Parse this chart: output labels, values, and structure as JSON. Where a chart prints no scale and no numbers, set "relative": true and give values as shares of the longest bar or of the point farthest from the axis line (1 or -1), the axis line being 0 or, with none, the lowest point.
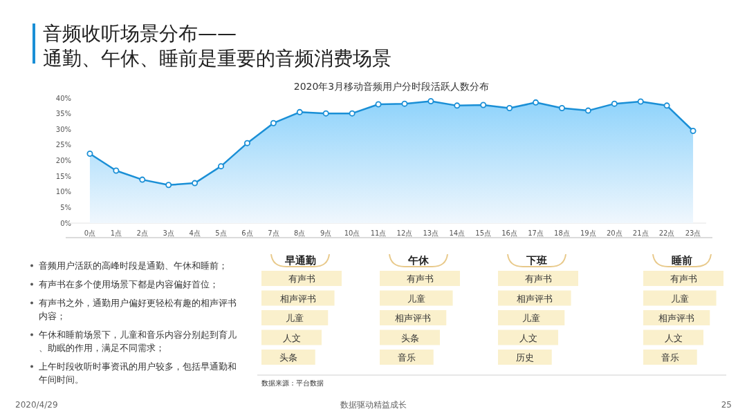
{
  "chart_data": [
    {
      "type": "area",
      "title": "2020年3月移动音频用户分时段活跃人数分布",
      "categories": [
        "0点",
        "1点",
        "2点",
        "3点",
        "4点",
        "5点",
        "6点",
        "7点",
        "8点",
        "9点",
        "10点",
        "11点",
        "12点",
        "13点",
        "14点",
        "15点",
        "16点",
        "17点",
        "18点",
        "19点",
        "20点",
        "21点",
        "22点",
        "23点"
      ],
      "series": [
        {
          "color": "#1a8fd6",
          "values": [
            22.2,
            16.8,
            13.9,
            12.2,
            12.8,
            18.2,
            25.6,
            32.0,
            35.5,
            35.1,
            35.1,
            38.0,
            38.2,
            39.0,
            37.6,
            37.8,
            36.8,
            38.6,
            36.8,
            36.0,
            38.2,
            38.9,
            37.6,
            29.5
          ]
        }
      ],
      "ylim": [
        0,
        40
      ],
      "yticks": [
        {
          "value": 0,
          "label": "0%"
        },
        {
          "value": 5,
          "label": "5%"
        },
        {
          "value": 10,
          "label": "10%"
        },
        {
          "value": 15,
          "label": "15%"
        },
        {
          "value": 20,
          "label": "20%"
        },
        {
          "value": 25,
          "label": "25%"
        },
        {
          "value": 30,
          "label": "30%"
        },
        {
          "value": 35,
          "label": "35%"
        },
        {
          "value": 40,
          "label": "40%"
        }
      ],
      "marker": "circle",
      "grid": false,
      "annotations": [
        "音频收听场景分布——",
        "通勤、午休、睡前是重要的音频消费场景",
        "数据来源：平台数据",
        "2020/4/29",
        "数据驱动精益成长",
        "25"
      ]
    },
    {
      "type": "other",
      "annotations": [
        "音频用户活跃的高峰时段是通勤、午休和睡前；",
        "有声书在多个使用场景下都是内容偏好首位；",
        "有声书之外，通勤用户偏好更轻松有趣的相声评书内容；",
        "午休和睡前场景下，儿童和音乐内容分别起到育儿、助眠的作用，满足不同需求；",
        "上午时段收听时事资讯的用户较多，包括早通勤和午间时间。"
      ]
    },
    {
      "type": "bar",
      "orientation": "horizontal",
      "relative": true,
      "title": "早通勤",
      "categories": [
        "有声书",
        "相声评书",
        "儿童",
        "人文",
        "头条"
      ],
      "series": [
        {
          "color": "#faf0cc",
          "values": [
            1,
            0.91,
            0.83,
            0.75,
            0.67
          ]
        }
      ]
    },
    {
      "type": "bar",
      "orientation": "horizontal",
      "relative": true,
      "title": "午休",
      "categories": [
        "有声书",
        "儿童",
        "相声评书",
        "头条",
        "音乐"
      ],
      "series": [
        {
          "color": "#faf0cc",
          "values": [
            1,
            0.91,
            0.83,
            0.75,
            0.67
          ]
        }
      ]
    },
    {
      "type": "bar",
      "orientation": "horizontal",
      "relative": true,
      "title": "下班",
      "categories": [
        "有声书",
        "相声评书",
        "儿童",
        "人文",
        "历史"
      ],
      "series": [
        {
          "color": "#faf0cc",
          "values": [
            1,
            0.91,
            0.83,
            0.75,
            0.67
          ]
        }
      ]
    },
    {
      "type": "bar",
      "orientation": "horizontal",
      "relative": true,
      "title": "睡前",
      "categories": [
        "有声书",
        "儿童",
        "相声评书",
        "人文",
        "音乐"
      ],
      "series": [
        {
          "color": "#faf0cc",
          "values": [
            1,
            0.91,
            0.83,
            0.75,
            0.67
          ]
        }
      ]
    }
  ]
}
